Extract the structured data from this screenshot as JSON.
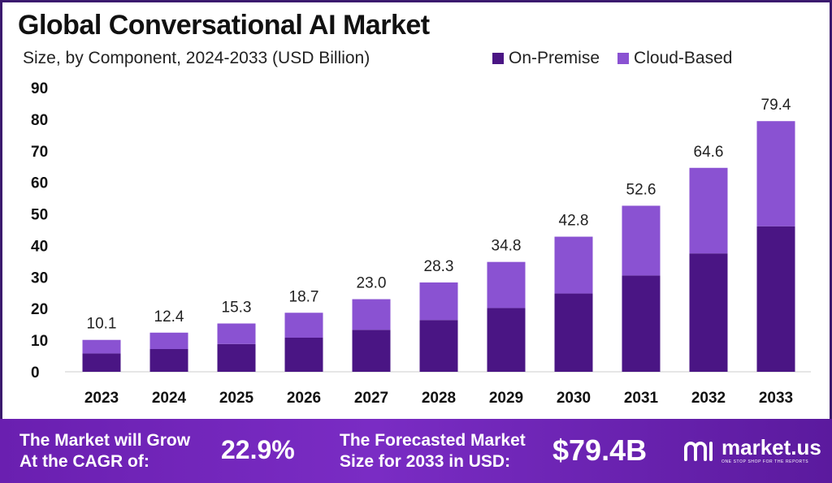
{
  "header": {
    "title": "Global Conversational AI Market",
    "subtitle": "Size, by Component, 2024-2033 (USD Billion)"
  },
  "colors": {
    "on_premise": "#4a1584",
    "cloud_based": "#8a52d2",
    "axis": "#cccccc"
  },
  "chart_data": {
    "type": "bar",
    "stacked": true,
    "title": "Global Conversational AI Market",
    "subtitle": "Size, by Component, 2024-2033 (USD Billion)",
    "categories": [
      "2023",
      "2024",
      "2025",
      "2026",
      "2027",
      "2028",
      "2029",
      "2030",
      "2031",
      "2032",
      "2033"
    ],
    "series": [
      {
        "name": "On-Premise",
        "values": [
          5.8,
          7.2,
          8.8,
          10.8,
          13.3,
          16.4,
          20.2,
          24.8,
          30.5,
          37.5,
          46.1
        ]
      },
      {
        "name": "Cloud-Based",
        "values": [
          4.3,
          5.2,
          6.5,
          7.9,
          9.7,
          11.9,
          14.6,
          18.0,
          22.1,
          27.1,
          33.3
        ]
      }
    ],
    "totals": [
      "10.1",
      "12.4",
      "15.3",
      "18.7",
      "23.0",
      "28.3",
      "34.8",
      "42.8",
      "52.6",
      "64.6",
      "79.4"
    ],
    "ylim": [
      0,
      90
    ],
    "yticks": [
      "0",
      "10",
      "20",
      "30",
      "40",
      "50",
      "60",
      "70",
      "80",
      "90"
    ],
    "legend_position": "top-right",
    "grid": false
  },
  "footer": {
    "cagr_label_line1": "The Market will Grow",
    "cagr_label_line2": "At the CAGR of:",
    "cagr_value": "22.9%",
    "forecast_label_line1": "The Forecasted Market",
    "forecast_label_line2": "Size for 2033 in USD:",
    "forecast_value": "$79.4B",
    "brand_name": "market.us",
    "brand_tagline": "ONE STOP SHOP FOR THE REPORTS",
    "brand_icon": "market-us-logo-icon"
  }
}
